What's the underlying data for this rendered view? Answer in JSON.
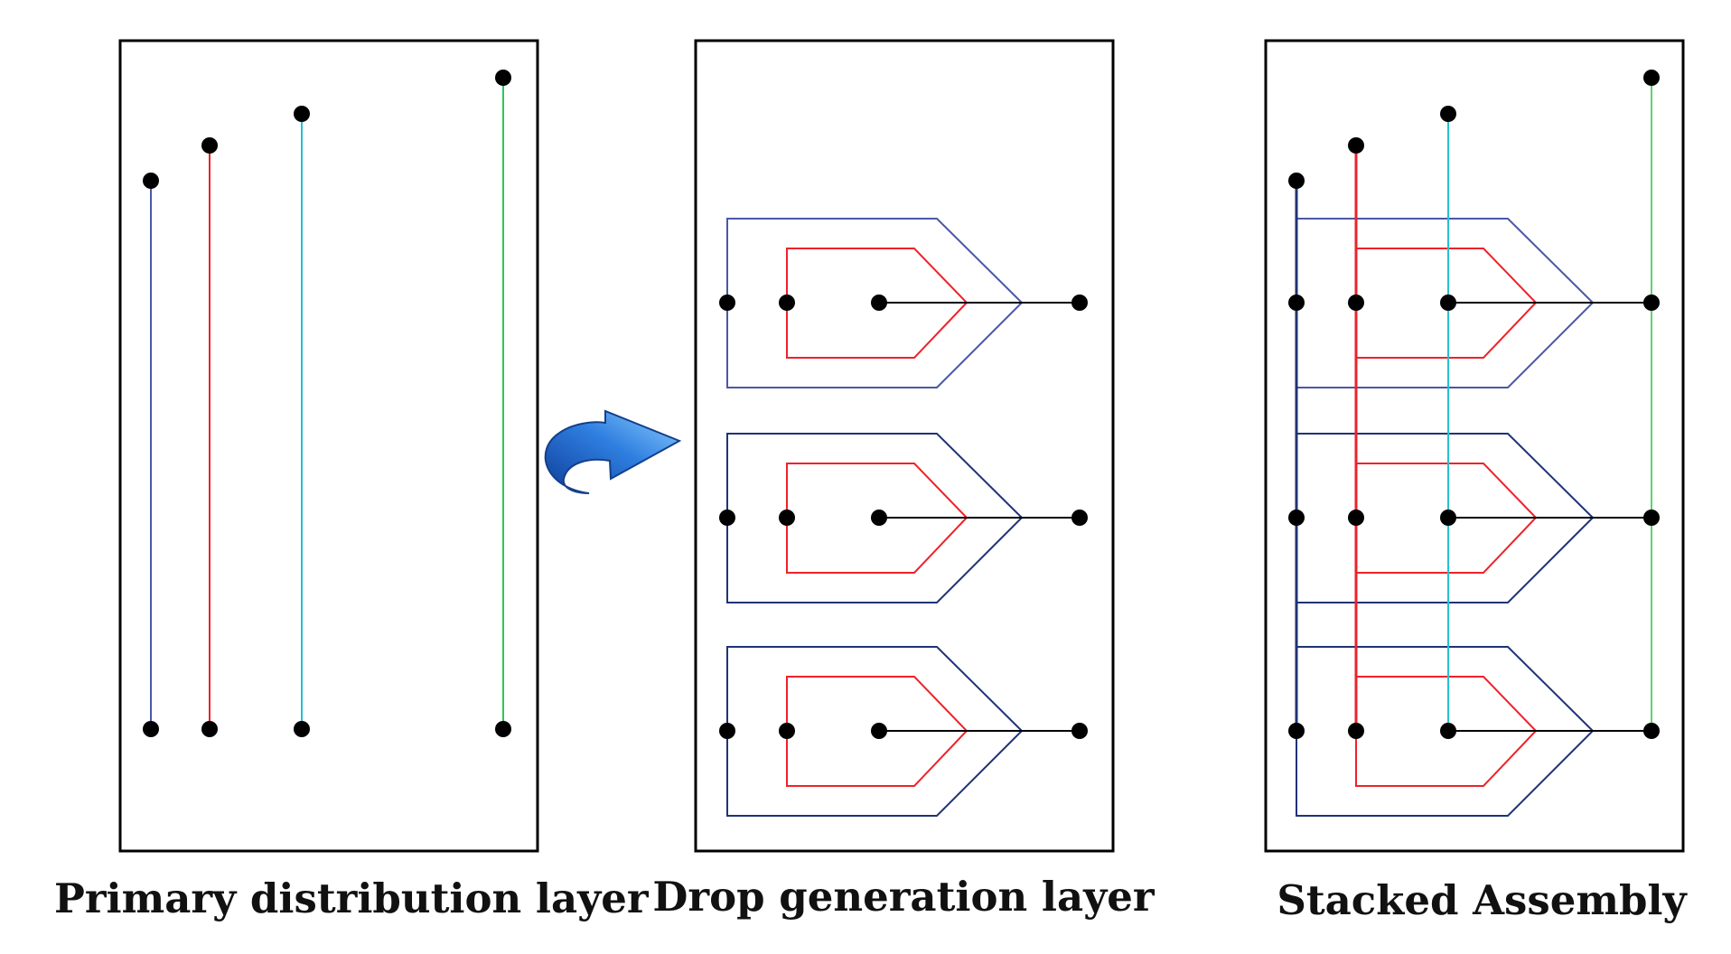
{
  "captions": {
    "primary": "Primary distribution layer",
    "drop": "Drop generation layer",
    "stacked": "Stacked Assembly"
  },
  "colors": {
    "blue": "#4a57a6",
    "navy": "#1f3376",
    "red": "#ee2229",
    "cyan": "#27c0cf",
    "green": "#2fc45a",
    "dot": "#000000",
    "frame": "#000000",
    "arrow": "#2a72d6"
  }
}
